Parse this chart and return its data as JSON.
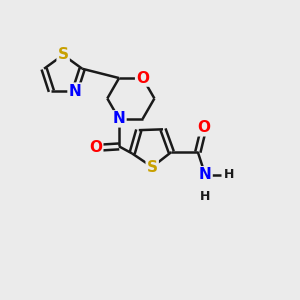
{
  "bg_color": "#ebebeb",
  "bond_color": "#1a1a1a",
  "bond_width": 1.8,
  "atom_colors": {
    "S": "#c8a000",
    "N": "#0000ff",
    "O": "#ff0000",
    "C": "#1a1a1a",
    "H": "#1a1a1a"
  },
  "font_size_atoms": 11,
  "font_size_h": 9,
  "figsize": [
    3.0,
    3.0
  ],
  "dpi": 100,
  "xlim": [
    0,
    10
  ],
  "ylim": [
    0,
    10
  ]
}
